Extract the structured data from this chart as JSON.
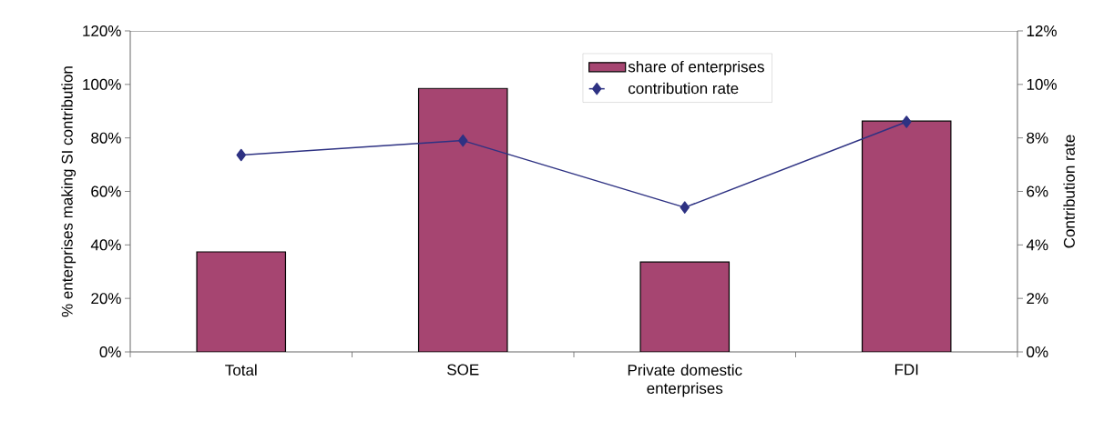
{
  "chart_data": {
    "type": "bar",
    "ylabel": "% enterprises making SI contribution",
    "y2label": "Contribution rate",
    "categories": [
      "Total",
      "SOE",
      "Private domestic enterprises",
      "FDI"
    ],
    "series": [
      {
        "name": "share of enterprises",
        "color": "#a64571",
        "values": [
          37.4,
          98.5,
          33.6,
          86.3
        ]
      },
      {
        "name": "contribution rate",
        "type": "line",
        "axis": "y2",
        "color": "#2e3283",
        "marker": "diamond",
        "values": [
          7.36,
          7.9,
          5.4,
          8.6
        ]
      }
    ],
    "ylim": [
      0,
      120
    ],
    "yticks": [
      {
        "value": 0,
        "label": "0%"
      },
      {
        "value": 20,
        "label": "20%"
      },
      {
        "value": 40,
        "label": "40%"
      },
      {
        "value": 60,
        "label": "60%"
      },
      {
        "value": 80,
        "label": "80%"
      },
      {
        "value": 100,
        "label": "100%"
      },
      {
        "value": 120,
        "label": "120%"
      }
    ],
    "y2lim": [
      0,
      12
    ],
    "y2ticks": [
      {
        "value": 0,
        "label": "0%"
      },
      {
        "value": 2,
        "label": "2%"
      },
      {
        "value": 4,
        "label": "4%"
      },
      {
        "value": 6,
        "label": "6%"
      },
      {
        "value": 8,
        "label": "8%"
      },
      {
        "value": 10,
        "label": "10%"
      },
      {
        "value": 12,
        "label": "12%"
      }
    ],
    "grid": false,
    "legend": "top"
  }
}
